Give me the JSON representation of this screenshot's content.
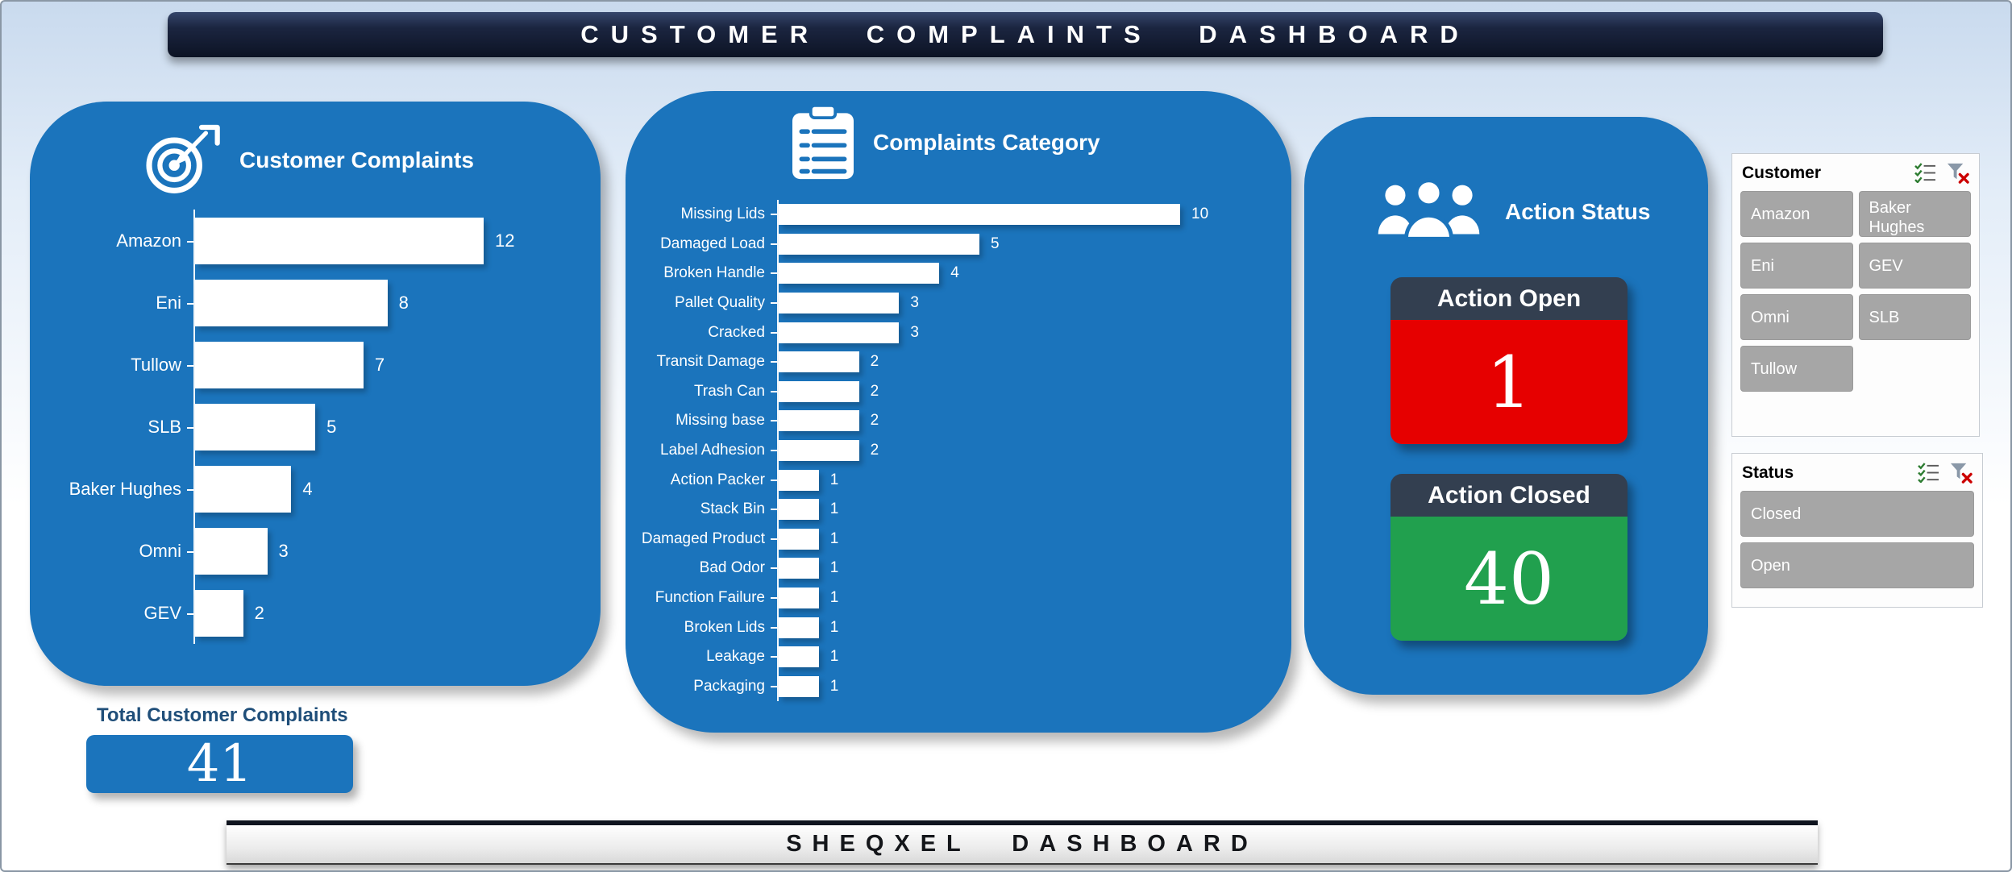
{
  "header": {
    "title": "CUSTOMER COMPLAINTS DASHBOARD"
  },
  "footer": {
    "title": "SHEQXEL DASHBOARD"
  },
  "colors": {
    "card_blue": "#1B74BC",
    "action_open_red": "#E60000",
    "action_closed_green": "#21A04E",
    "slicer_gray": "#A6A6A6"
  },
  "chart_data": [
    {
      "type": "bar",
      "orientation": "horizontal",
      "title": "Customer Complaints",
      "categories": [
        "Amazon",
        "Eni",
        "Tullow",
        "SLB",
        "Baker Hughes",
        "Omni",
        "GEV"
      ],
      "values": [
        12,
        8,
        7,
        5,
        4,
        3,
        2
      ],
      "xlim": [
        0,
        12
      ],
      "bar_color": "#FFFFFF",
      "grid": false,
      "legend": "none"
    },
    {
      "type": "bar",
      "orientation": "horizontal",
      "title": "Complaints Category",
      "categories": [
        "Missing Lids",
        "Damaged Load",
        "Broken Handle",
        "Pallet Quality",
        "Cracked",
        "Transit Damage",
        "Trash Can",
        "Missing base",
        "Label Adhesion",
        "Action Packer",
        "Stack Bin",
        "Damaged Product",
        "Bad Odor",
        "Function Failure",
        "Broken Lids",
        "Leakage",
        "Packaging"
      ],
      "values": [
        10,
        5,
        4,
        3,
        3,
        2,
        2,
        2,
        2,
        1,
        1,
        1,
        1,
        1,
        1,
        1,
        1
      ],
      "xlim": [
        0,
        10
      ],
      "bar_color": "#FFFFFF",
      "grid": false,
      "legend": "none"
    }
  ],
  "action_status": {
    "title": "Action Status",
    "cards": [
      {
        "label": "Action Open",
        "value": 1,
        "color": "#E60000"
      },
      {
        "label": "Action Closed",
        "value": 40,
        "color": "#21A04E"
      }
    ]
  },
  "total": {
    "label": "Total Customer Complaints",
    "value": 41
  },
  "slicers": [
    {
      "title": "Customer",
      "columns": 2,
      "items": [
        "Amazon",
        "Baker Hughes",
        "Eni",
        "GEV",
        "Omni",
        "SLB",
        "Tullow"
      ],
      "icons": [
        "multiselect-icon",
        "clear-filter-icon"
      ]
    },
    {
      "title": "Status",
      "columns": 1,
      "items": [
        "Closed",
        "Open"
      ],
      "icons": [
        "multiselect-icon",
        "clear-filter-icon"
      ]
    }
  ]
}
